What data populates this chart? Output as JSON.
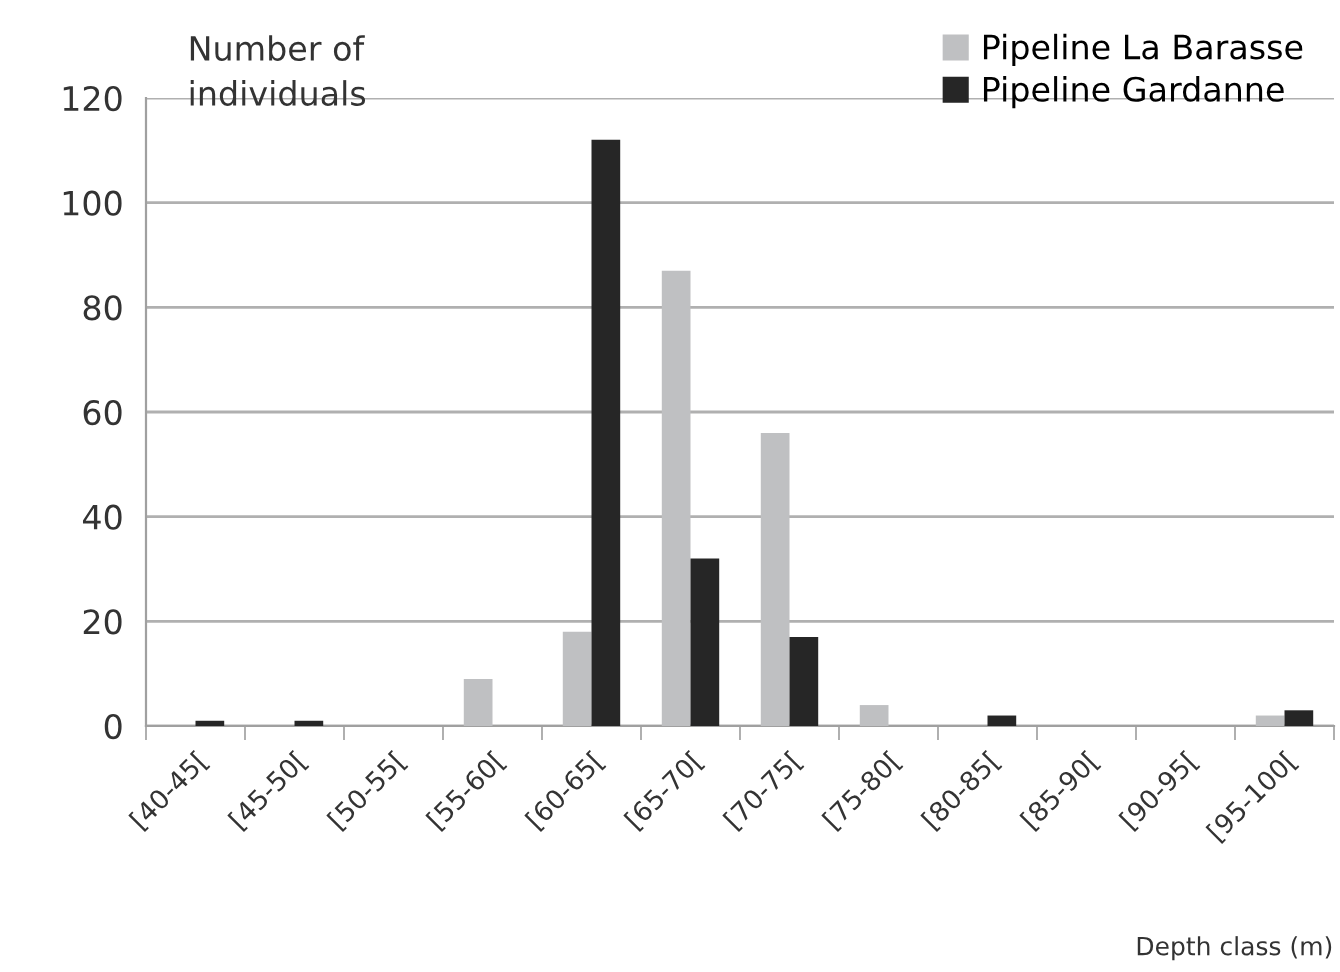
{
  "chart_data": {
    "type": "bar",
    "categories": [
      "[40-45[",
      "[45-50[",
      "[50-55[",
      "[55-60[",
      "[60-65[",
      "[65-70[",
      "[70-75[",
      "[75-80[",
      "[80-85[",
      "[85-90[",
      "[90-95[",
      "[95-100["
    ],
    "series": [
      {
        "name": "Pipeline La Barasse",
        "color": "#bfc0c2",
        "values": [
          0,
          0,
          0,
          9,
          18,
          87,
          56,
          4,
          0,
          0,
          0,
          2
        ]
      },
      {
        "name": "Pipeline Gardanne",
        "color": "#262626",
        "values": [
          1,
          1,
          0,
          0,
          112,
          32,
          17,
          0,
          2,
          0,
          0,
          3
        ]
      }
    ],
    "ylabel": "Number of\nindividuals",
    "xlabel": "Depth class (m)",
    "ylim": [
      0,
      120
    ],
    "yticks": [
      0,
      20,
      40,
      60,
      80,
      100,
      120
    ],
    "grid": "y",
    "legend": "top right"
  }
}
